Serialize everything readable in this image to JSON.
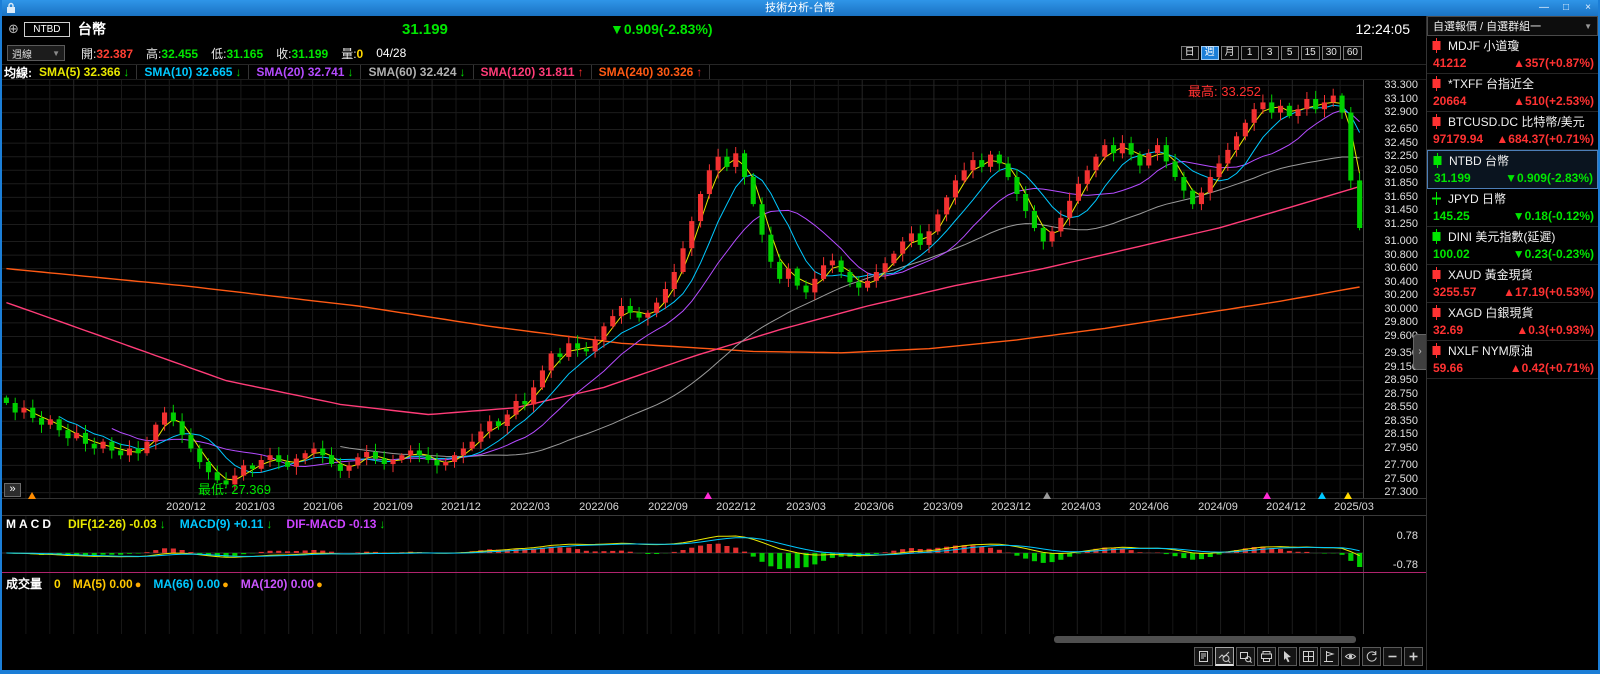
{
  "window": {
    "title": "技術分析-台幣",
    "controls": {
      "minimize": "—",
      "maximize": "□",
      "close": "×"
    },
    "accent": "#1b7ed7"
  },
  "header": {
    "zoom_icon_glyph": "⊕",
    "symbol_code": "NTBD",
    "symbol_name": "台幣",
    "price": "31.199",
    "change": "▼0.909(-2.83%)",
    "price_color": "#00e600",
    "clock": "12:24:05"
  },
  "toolbar_row": {
    "period_select": {
      "value": "週線",
      "caret": "▼"
    },
    "ohlc": [
      {
        "label": "開:",
        "value": "32.387",
        "color": "#ff4034"
      },
      {
        "label": "高:",
        "value": "32.455",
        "color": "#00e600"
      },
      {
        "label": "低:",
        "value": "31.165",
        "color": "#00e600"
      },
      {
        "label": "收:",
        "value": "31.199",
        "color": "#00e600"
      },
      {
        "label": "量:",
        "value": "0",
        "color": "#ffd800"
      }
    ],
    "date": "04/28",
    "timeframes": [
      {
        "label": "日",
        "active": false
      },
      {
        "label": "週",
        "active": true
      },
      {
        "label": "月",
        "active": false
      },
      {
        "label": "1",
        "active": false
      },
      {
        "label": "3",
        "active": false
      },
      {
        "label": "5",
        "active": false
      },
      {
        "label": "15",
        "active": false
      },
      {
        "label": "30",
        "active": false
      },
      {
        "label": "60",
        "active": false
      }
    ]
  },
  "sma_legend": {
    "prefix": "均線:",
    "items": [
      {
        "text": "SMA(5) 32.366",
        "arrow": "↓",
        "color": "#e8e800",
        "arrow_color": "#00dd00"
      },
      {
        "text": "SMA(10) 32.665",
        "arrow": "↓",
        "color": "#00c8ff",
        "arrow_color": "#00dd00"
      },
      {
        "text": "SMA(20) 32.741",
        "arrow": "↓",
        "color": "#b44bff",
        "arrow_color": "#00dd00"
      },
      {
        "text": "SMA(60) 32.424",
        "arrow": "↓",
        "color": "#b0b0b0",
        "arrow_color": "#00dd00"
      },
      {
        "text": "SMA(120) 31.811",
        "arrow": "↑",
        "color": "#ff3c78",
        "arrow_color": "#ff3030"
      },
      {
        "text": "SMA(240) 30.326",
        "arrow": "↑",
        "color": "#ff5a14",
        "arrow_color": "#ff3030"
      }
    ]
  },
  "chart_labels": {
    "high": "最高: 33.252",
    "low": "最低: 27.369"
  },
  "chart_data": {
    "type": "candlestick",
    "symbol": "NTBD 台幣",
    "period": "週線 (weekly)",
    "price_range": [
      27.22,
      33.38
    ],
    "up_color": "#f23131",
    "down_color": "#00cf00",
    "y_ticks": [
      "33.300",
      "33.100",
      "32.900",
      "32.650",
      "32.450",
      "32.250",
      "32.050",
      "31.850",
      "31.650",
      "31.450",
      "31.250",
      "31.000",
      "30.800",
      "30.600",
      "30.400",
      "30.200",
      "30.000",
      "29.800",
      "29.600",
      "29.350",
      "29.150",
      "28.950",
      "28.750",
      "28.550",
      "28.350",
      "28.150",
      "27.950",
      "27.700",
      "27.500",
      "27.300"
    ],
    "x_labels": [
      {
        "label": "2020/12",
        "f": 0.135
      },
      {
        "label": "2021/03",
        "f": 0.186
      },
      {
        "label": "2021/06",
        "f": 0.236
      },
      {
        "label": "2021/09",
        "f": 0.287
      },
      {
        "label": "2021/12",
        "f": 0.337
      },
      {
        "label": "2022/03",
        "f": 0.388
      },
      {
        "label": "2022/06",
        "f": 0.438
      },
      {
        "label": "2022/09",
        "f": 0.489
      },
      {
        "label": "2022/12",
        "f": 0.539
      },
      {
        "label": "2023/03",
        "f": 0.59
      },
      {
        "label": "2023/06",
        "f": 0.64
      },
      {
        "label": "2023/09",
        "f": 0.691
      },
      {
        "label": "2023/12",
        "f": 0.741
      },
      {
        "label": "2024/03",
        "f": 0.792
      },
      {
        "label": "2024/06",
        "f": 0.842
      },
      {
        "label": "2024/09",
        "f": 0.893
      },
      {
        "label": "2024/12",
        "f": 0.943
      },
      {
        "label": "2025/03",
        "f": 0.993
      }
    ],
    "markers": [
      {
        "f": 0.022,
        "color": "#ff8c00"
      },
      {
        "f": 0.518,
        "color": "#ff2ad4"
      },
      {
        "f": 0.767,
        "color": "#9a9a9a"
      },
      {
        "f": 0.929,
        "color": "#ff2ad4"
      },
      {
        "f": 0.969,
        "color": "#00c8ff"
      },
      {
        "f": 0.988,
        "color": "#ffd800"
      }
    ],
    "closes": [
      28.62,
      28.48,
      28.55,
      28.4,
      28.3,
      28.38,
      28.22,
      28.1,
      28.18,
      28.02,
      27.95,
      28.05,
      27.92,
      27.85,
      27.95,
      27.88,
      28.05,
      28.3,
      28.48,
      28.35,
      28.15,
      27.95,
      27.75,
      27.6,
      27.48,
      27.42,
      27.55,
      27.7,
      27.65,
      27.78,
      27.85,
      27.75,
      27.68,
      27.8,
      27.88,
      27.95,
      27.85,
      27.72,
      27.62,
      27.7,
      27.82,
      27.9,
      27.8,
      27.72,
      27.78,
      27.85,
      27.92,
      27.85,
      27.78,
      27.7,
      27.75,
      27.85,
      27.95,
      28.05,
      28.2,
      28.35,
      28.28,
      28.45,
      28.65,
      28.6,
      28.85,
      29.1,
      29.35,
      29.3,
      29.5,
      29.42,
      29.38,
      29.55,
      29.75,
      29.9,
      30.05,
      29.95,
      29.88,
      29.95,
      30.1,
      30.3,
      30.55,
      30.9,
      31.3,
      31.7,
      32.05,
      32.25,
      32.1,
      32.3,
      31.95,
      31.55,
      31.1,
      30.7,
      30.45,
      30.6,
      30.35,
      30.25,
      30.45,
      30.65,
      30.72,
      30.55,
      30.4,
      30.32,
      30.42,
      30.55,
      30.68,
      30.82,
      31.0,
      31.12,
      30.95,
      31.15,
      31.4,
      31.65,
      31.9,
      32.05,
      32.2,
      32.1,
      32.28,
      32.15,
      31.95,
      31.7,
      31.45,
      31.2,
      31.0,
      31.15,
      31.35,
      31.6,
      31.85,
      32.05,
      32.25,
      32.42,
      32.3,
      32.45,
      32.28,
      32.12,
      32.3,
      32.42,
      32.18,
      31.95,
      31.75,
      31.55,
      31.72,
      31.95,
      32.15,
      32.35,
      32.55,
      32.75,
      32.95,
      33.05,
      32.9,
      33.0,
      32.85,
      32.95,
      33.1,
      32.95,
      33.05,
      33.15,
      32.9,
      31.9,
      31.199
    ],
    "extremes": {
      "low_index": 25,
      "low": 27.369,
      "high_index": 151,
      "high": 33.252,
      "last_low": 31.165
    },
    "overlays": {
      "sma_windows": [
        {
          "name": "SMA(60)",
          "window": 39,
          "color": "#9a9a9a"
        },
        {
          "name": "SMA(20)",
          "window": 13,
          "color": "#b44bff"
        },
        {
          "name": "SMA(10)",
          "window": 7,
          "color": "#00c8ff"
        },
        {
          "name": "SMA(5)",
          "window": 3,
          "color": "#e8e800"
        }
      ],
      "sma120_anchors": [
        [
          0,
          30.1
        ],
        [
          12,
          29.55
        ],
        [
          25,
          28.95
        ],
        [
          38,
          28.6
        ],
        [
          48,
          28.45
        ],
        [
          58,
          28.55
        ],
        [
          68,
          28.85
        ],
        [
          78,
          29.3
        ],
        [
          88,
          29.7
        ],
        [
          98,
          30.05
        ],
        [
          108,
          30.35
        ],
        [
          118,
          30.6
        ],
        [
          128,
          30.9
        ],
        [
          138,
          31.2
        ],
        [
          146,
          31.5
        ],
        [
          154,
          31.81
        ]
      ],
      "sma120_color": "#ff3c78",
      "sma240_anchors": [
        [
          0,
          30.6
        ],
        [
          20,
          30.35
        ],
        [
          40,
          30.05
        ],
        [
          55,
          29.75
        ],
        [
          70,
          29.5
        ],
        [
          85,
          29.38
        ],
        [
          95,
          29.36
        ],
        [
          105,
          29.42
        ],
        [
          115,
          29.55
        ],
        [
          125,
          29.72
        ],
        [
          135,
          29.92
        ],
        [
          145,
          30.12
        ],
        [
          154,
          30.33
        ]
      ],
      "sma240_color": "#ff5a14"
    },
    "macd": {
      "fast": 8,
      "slow": 17,
      "signal": 6,
      "axis": [
        0.78,
        -0.78
      ],
      "pos_color": "#e03030",
      "neg_color": "#00cf00",
      "dif_color": "#e8e800",
      "signal_color": "#00c8ff"
    }
  },
  "macd_panel": {
    "title": "MACD",
    "items": [
      {
        "text": "DIF(12-26)  -0.03",
        "arrow": "↓",
        "color": "#e8e800",
        "arrow_color": "#00dd00"
      },
      {
        "text": "MACD(9)  +0.11",
        "arrow": "↓",
        "color": "#00c8ff",
        "arrow_color": "#00dd00"
      },
      {
        "text": "DIF-MACD  -0.13",
        "arrow": "↓",
        "color": "#cc44ff",
        "arrow_color": "#00dd00"
      }
    ],
    "axis_labels": [
      "0.78",
      "-0.78"
    ]
  },
  "volume_panel": {
    "title": "成交量",
    "value": "0",
    "items": [
      {
        "text": "MA(5) 0.00",
        "color": "#ffc800",
        "dot": "●",
        "dot_color": "#ffaa00"
      },
      {
        "text": "MA(66) 0.00",
        "color": "#00c8ff",
        "dot": "●",
        "dot_color": "#ffaa00"
      },
      {
        "text": "MA(120) 0.00",
        "color": "#cc55ff",
        "dot": "●",
        "dot_color": "#ffaa00"
      }
    ]
  },
  "bottom_toolbar": {
    "icons": [
      "report",
      "chart-zoom",
      "region-zoom",
      "print",
      "cursor",
      "grid",
      "indicator",
      "eye",
      "refresh",
      "zoom-out",
      "zoom-in"
    ],
    "active": "chart-zoom"
  },
  "expand_button_glyph": "»",
  "sidebar": {
    "group_select": {
      "value": "自選報價 / 自選群組一",
      "caret": "▼"
    },
    "collapse_glyph": "›",
    "up_color": "#ff3232",
    "down_color": "#00e600",
    "items": [
      {
        "name": "MDJF 小道瓊",
        "price": "41212",
        "change": "▲357(+0.87%)",
        "dir": "up",
        "icon": "candle-up",
        "selected": false
      },
      {
        "name": "*TXFF 台指近全",
        "price": "20664",
        "change": "▲510(+2.53%)",
        "dir": "up",
        "icon": "candle-up",
        "selected": false
      },
      {
        "name": "BTCUSD.DC 比特幣/美元",
        "price": "97179.94",
        "change": "▲684.37(+0.71%)",
        "dir": "up",
        "icon": "candle-up",
        "selected": false
      },
      {
        "name": "NTBD 台幣",
        "price": "31.199",
        "change": "▼0.909(-2.83%)",
        "dir": "down",
        "icon": "candle-down",
        "selected": true
      },
      {
        "name": "JPYD 日幣",
        "price": "145.25",
        "change": "▼0.18(-0.12%)",
        "dir": "down",
        "icon": "doji-down",
        "selected": false
      },
      {
        "name": "DINI 美元指數(延遲)",
        "price": "100.02",
        "change": "▼0.23(-0.23%)",
        "dir": "down",
        "icon": "candle-down",
        "selected": false
      },
      {
        "name": "XAUD 黃金現貨",
        "price": "3255.57",
        "change": "▲17.19(+0.53%)",
        "dir": "up",
        "icon": "candle-up",
        "selected": false
      },
      {
        "name": "XAGD 白銀現貨",
        "price": "32.69",
        "change": "▲0.3(+0.93%)",
        "dir": "up",
        "icon": "candle-up",
        "selected": false
      },
      {
        "name": "NXLF NYM原油",
        "price": "59.66",
        "change": "▲0.42(+0.71%)",
        "dir": "up",
        "icon": "candle-up",
        "selected": false
      }
    ]
  }
}
